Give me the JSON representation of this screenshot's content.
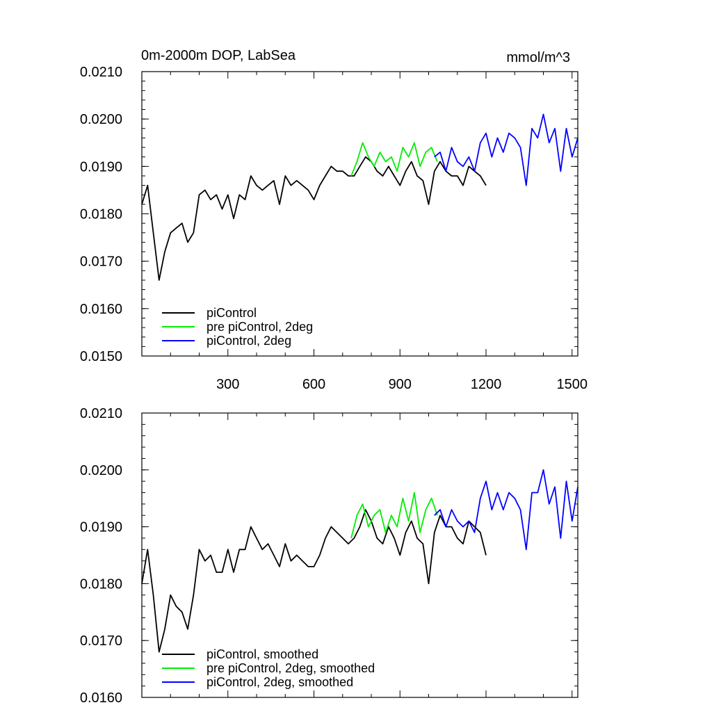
{
  "chart_data": [
    {
      "type": "line",
      "title": "0m-2000m DOP, LabSea",
      "units": "mmol/m^3",
      "xlim": [
        0,
        1520
      ],
      "ylim": [
        0.015,
        0.021
      ],
      "x_ticks": [
        300,
        600,
        900,
        1200,
        1500
      ],
      "x_tick_labels": [
        "300",
        "600",
        "900",
        "1200",
        "1500"
      ],
      "y_ticks": [
        0.015,
        0.016,
        0.017,
        0.018,
        0.019,
        0.02,
        0.021
      ],
      "y_tick_labels": [
        "0.0150",
        "0.0160",
        "0.0170",
        "0.0180",
        "0.0190",
        "0.0200",
        "0.0210"
      ],
      "legend_position": "bottom-left",
      "series": [
        {
          "name": "piControl",
          "color": "#000000",
          "x": [
            0,
            20,
            40,
            60,
            80,
            100,
            120,
            140,
            160,
            180,
            200,
            220,
            240,
            260,
            280,
            300,
            320,
            340,
            360,
            380,
            400,
            420,
            440,
            460,
            480,
            500,
            520,
            540,
            560,
            580,
            600,
            620,
            640,
            660,
            680,
            700,
            720,
            740,
            760,
            780,
            800,
            820,
            840,
            860,
            880,
            900,
            920,
            940,
            960,
            980,
            1000,
            1020,
            1040,
            1060,
            1080,
            1100,
            1120,
            1140,
            1160,
            1180,
            1200
          ],
          "y": [
            0.0182,
            0.0186,
            0.0176,
            0.0166,
            0.0172,
            0.0176,
            0.0177,
            0.0178,
            0.0174,
            0.0176,
            0.0184,
            0.0185,
            0.0183,
            0.0184,
            0.0181,
            0.0184,
            0.0179,
            0.0184,
            0.0183,
            0.0188,
            0.0186,
            0.0185,
            0.0186,
            0.0187,
            0.0182,
            0.0188,
            0.0186,
            0.0187,
            0.0186,
            0.0185,
            0.0183,
            0.0186,
            0.0188,
            0.019,
            0.0189,
            0.0189,
            0.0188,
            0.0188,
            0.019,
            0.0192,
            0.0191,
            0.0189,
            0.0188,
            0.019,
            0.0188,
            0.0186,
            0.0189,
            0.0191,
            0.0188,
            0.0187,
            0.0182,
            0.0189,
            0.0191,
            0.0189,
            0.0188,
            0.0188,
            0.0186,
            0.019,
            0.0189,
            0.0188,
            0.0186
          ]
        },
        {
          "name": "pre piControl, 2deg",
          "color": "#00ee00",
          "x": [
            730,
            750,
            770,
            790,
            810,
            830,
            850,
            870,
            890,
            910,
            930,
            950,
            970,
            990,
            1010,
            1030
          ],
          "y": [
            0.0188,
            0.0191,
            0.0195,
            0.0192,
            0.019,
            0.0193,
            0.0191,
            0.0192,
            0.0189,
            0.0194,
            0.0192,
            0.0195,
            0.019,
            0.0193,
            0.0194,
            0.0191
          ]
        },
        {
          "name": "piControl, 2deg",
          "color": "#0000ff",
          "x": [
            1020,
            1040,
            1060,
            1080,
            1100,
            1120,
            1140,
            1160,
            1180,
            1200,
            1220,
            1240,
            1260,
            1280,
            1300,
            1320,
            1340,
            1360,
            1380,
            1400,
            1420,
            1440,
            1460,
            1480,
            1500,
            1520
          ],
          "y": [
            0.0192,
            0.0193,
            0.0189,
            0.0194,
            0.0191,
            0.019,
            0.0192,
            0.0189,
            0.0195,
            0.0197,
            0.0192,
            0.0196,
            0.0193,
            0.0197,
            0.0196,
            0.0194,
            0.0186,
            0.0198,
            0.0196,
            0.0201,
            0.0195,
            0.0198,
            0.0189,
            0.0198,
            0.0192,
            0.0196
          ]
        }
      ]
    },
    {
      "type": "line",
      "title": "",
      "xlim": [
        0,
        1520
      ],
      "ylim": [
        0.016,
        0.021
      ],
      "x_ticks": [
        300,
        600,
        900,
        1200,
        1500
      ],
      "y_ticks": [
        0.016,
        0.017,
        0.018,
        0.019,
        0.02,
        0.021
      ],
      "y_tick_labels": [
        "0.0160",
        "0.0170",
        "0.0180",
        "0.0190",
        "0.0200",
        "0.0210"
      ],
      "legend_position": "bottom-left",
      "series": [
        {
          "name": "piControl, smoothed",
          "color": "#000000",
          "x": [
            0,
            20,
            40,
            60,
            80,
            100,
            120,
            140,
            160,
            180,
            200,
            220,
            240,
            260,
            280,
            300,
            320,
            340,
            360,
            380,
            400,
            420,
            440,
            460,
            480,
            500,
            520,
            540,
            560,
            580,
            600,
            620,
            640,
            660,
            680,
            700,
            720,
            740,
            760,
            780,
            800,
            820,
            840,
            860,
            880,
            900,
            920,
            940,
            960,
            980,
            1000,
            1020,
            1040,
            1060,
            1080,
            1100,
            1120,
            1140,
            1160,
            1180,
            1200
          ],
          "y": [
            0.018,
            0.0186,
            0.0178,
            0.0168,
            0.0172,
            0.0178,
            0.0176,
            0.0175,
            0.0172,
            0.0178,
            0.0186,
            0.0184,
            0.0185,
            0.0182,
            0.0182,
            0.0186,
            0.0182,
            0.0186,
            0.0186,
            0.019,
            0.0188,
            0.0186,
            0.0187,
            0.0185,
            0.0183,
            0.0187,
            0.0184,
            0.0185,
            0.0184,
            0.0183,
            0.0183,
            0.0185,
            0.0188,
            0.019,
            0.0189,
            0.0188,
            0.0187,
            0.0188,
            0.019,
            0.0193,
            0.0191,
            0.0188,
            0.0187,
            0.019,
            0.0188,
            0.0185,
            0.0189,
            0.0191,
            0.0188,
            0.0187,
            0.018,
            0.0189,
            0.0192,
            0.019,
            0.019,
            0.0188,
            0.0187,
            0.0191,
            0.019,
            0.0189,
            0.0185
          ]
        },
        {
          "name": "pre piControl, 2deg, smoothed",
          "color": "#00ee00",
          "x": [
            730,
            750,
            770,
            790,
            810,
            830,
            850,
            870,
            890,
            910,
            930,
            950,
            970,
            990,
            1010,
            1030
          ],
          "y": [
            0.0188,
            0.0192,
            0.0194,
            0.019,
            0.0192,
            0.0193,
            0.0189,
            0.0192,
            0.019,
            0.0195,
            0.0191,
            0.0196,
            0.0189,
            0.0193,
            0.0195,
            0.0192
          ]
        },
        {
          "name": "piControl, 2deg, smoothed",
          "color": "#0000ff",
          "x": [
            1020,
            1040,
            1060,
            1080,
            1100,
            1120,
            1140,
            1160,
            1180,
            1200,
            1220,
            1240,
            1260,
            1280,
            1300,
            1320,
            1340,
            1360,
            1380,
            1400,
            1420,
            1440,
            1460,
            1480,
            1500,
            1520
          ],
          "y": [
            0.0192,
            0.0193,
            0.019,
            0.0193,
            0.0191,
            0.019,
            0.0191,
            0.0189,
            0.0195,
            0.0198,
            0.0193,
            0.0196,
            0.0193,
            0.0196,
            0.0195,
            0.0193,
            0.0186,
            0.0196,
            0.0196,
            0.02,
            0.0194,
            0.0197,
            0.0188,
            0.0198,
            0.0191,
            0.0197
          ]
        }
      ]
    }
  ]
}
